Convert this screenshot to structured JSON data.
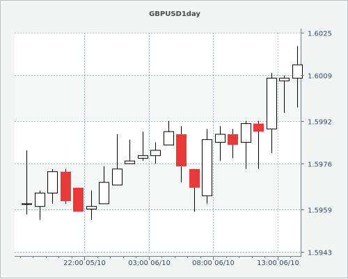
{
  "chart_data": {
    "type": "candlestick",
    "title": "GBPUSD1day",
    "xlabel": "",
    "ylabel": "",
    "ylim": [
      1.5943,
      1.6025
    ],
    "y_ticks": [
      "1.6025",
      "1.6009",
      "1.5992",
      "1.5976",
      "1.5959",
      "1.5943"
    ],
    "y_tick_values": [
      1.6025,
      1.6009,
      1.5992,
      1.5976,
      1.5959,
      1.5943
    ],
    "x_ticks": [
      "22:00 05/10",
      "03:00 06/10",
      "08:00 06/10",
      "13:00 06/10"
    ],
    "x_tick_candle_index": [
      4.5,
      9.5,
      14.5,
      19.5
    ],
    "grid": true,
    "colors": {
      "bull_body": "#ffffff",
      "bear_body": "#e8393b",
      "wick": "#000000",
      "grid": "#8fc8d0",
      "band": "#ffffff"
    },
    "candles": [
      {
        "open": 1.5961,
        "high": 1.5981,
        "low": 1.5957,
        "close": 1.5961
      },
      {
        "open": 1.596,
        "high": 1.5966,
        "low": 1.5955,
        "close": 1.5965
      },
      {
        "open": 1.5965,
        "high": 1.5974,
        "low": 1.5961,
        "close": 1.5973
      },
      {
        "open": 1.5973,
        "high": 1.5974,
        "low": 1.5961,
        "close": 1.5962
      },
      {
        "open": 1.5967,
        "high": 1.5967,
        "low": 1.5958,
        "close": 1.5958
      },
      {
        "open": 1.5959,
        "high": 1.5966,
        "low": 1.5955,
        "close": 1.596
      },
      {
        "open": 1.5961,
        "high": 1.5975,
        "low": 1.5961,
        "close": 1.5969
      },
      {
        "open": 1.5968,
        "high": 1.5987,
        "low": 1.5968,
        "close": 1.5974
      },
      {
        "open": 1.5976,
        "high": 1.5985,
        "low": 1.5976,
        "close": 1.5977
      },
      {
        "open": 1.5978,
        "high": 1.5988,
        "low": 1.5977,
        "close": 1.5979
      },
      {
        "open": 1.5979,
        "high": 1.5984,
        "low": 1.5976,
        "close": 1.5981
      },
      {
        "open": 1.5983,
        "high": 1.5992,
        "low": 1.5983,
        "close": 1.5988
      },
      {
        "open": 1.5987,
        "high": 1.599,
        "low": 1.5969,
        "close": 1.5975
      },
      {
        "open": 1.5974,
        "high": 1.5974,
        "low": 1.5958,
        "close": 1.5967
      },
      {
        "open": 1.5964,
        "high": 1.5989,
        "low": 1.5961,
        "close": 1.5985
      },
      {
        "open": 1.5984,
        "high": 1.599,
        "low": 1.5977,
        "close": 1.5987
      },
      {
        "open": 1.5987,
        "high": 1.5989,
        "low": 1.5978,
        "close": 1.5983
      },
      {
        "open": 1.5984,
        "high": 1.5992,
        "low": 1.5974,
        "close": 1.5991
      },
      {
        "open": 1.5991,
        "high": 1.5992,
        "low": 1.5974,
        "close": 1.5988
      },
      {
        "open": 1.5989,
        "high": 1.601,
        "low": 1.598,
        "close": 1.6008
      },
      {
        "open": 1.6007,
        "high": 1.6009,
        "low": 1.5995,
        "close": 1.6008
      },
      {
        "open": 1.6008,
        "high": 1.602,
        "low": 1.5997,
        "close": 1.6013
      }
    ]
  }
}
